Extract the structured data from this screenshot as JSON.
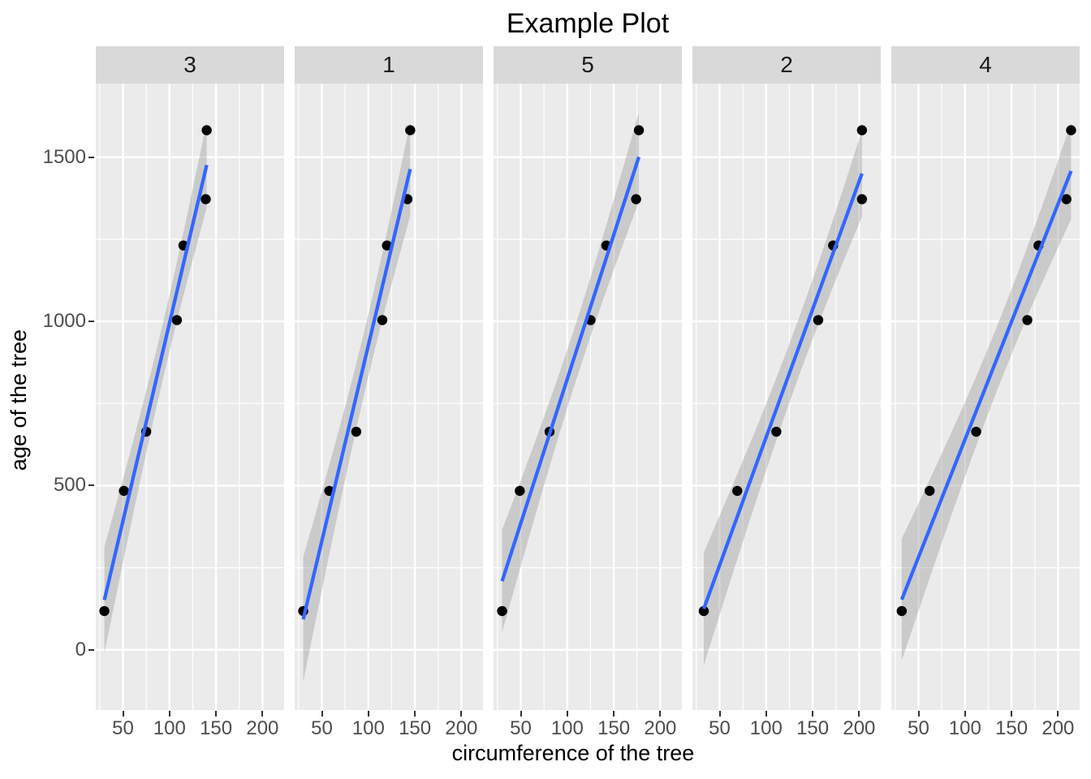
{
  "chart_data": {
    "type": "scatter",
    "title": "Example Plot",
    "xlabel": "circumference of the tree",
    "ylabel": "age of the tree",
    "facet_variable_order": [
      "3",
      "1",
      "5",
      "2",
      "4"
    ],
    "xlim": [
      20.8,
      223.2
    ],
    "ylim": [
      -183.3,
      1724.0
    ],
    "x_ticks": [
      50,
      100,
      150,
      200
    ],
    "y_ticks": [
      0,
      500,
      1000,
      1500
    ],
    "x_minor_breaks": [
      25,
      75,
      125,
      175
    ],
    "y_minor_breaks": [
      250,
      750,
      1250
    ],
    "grid": true,
    "legend": "none",
    "series": [
      {
        "facet": "3",
        "circumference": [
          30,
          51,
          75,
          108,
          115,
          139,
          140
        ],
        "age": [
          118,
          484,
          664,
          1004,
          1231,
          1372,
          1582
        ],
        "smooth": {
          "method": "lm",
          "intercept": -209.51,
          "slope": 12.0389,
          "t_se": 226.08,
          "x_mean": 94.0,
          "sxx": 11084.0,
          "n": 7,
          "x_min": 30,
          "x_max": 140
        }
      },
      {
        "facet": "1",
        "circumference": [
          30,
          58,
          87,
          115,
          120,
          142,
          145
        ],
        "age": [
          118,
          484,
          664,
          1004,
          1231,
          1372,
          1582
        ],
        "smooth": {
          "method": "lm",
          "intercept": -264.67,
          "slope": 11.9193,
          "t_se": 250.47,
          "x_mean": 99.5714,
          "sxx": 11245.7,
          "n": 7,
          "x_min": 30,
          "x_max": 145
        }
      },
      {
        "facet": "5",
        "circumference": [
          30,
          49,
          81,
          125,
          142,
          174,
          177
        ],
        "age": [
          118,
          484,
          664,
          1004,
          1231,
          1372,
          1582
        ],
        "smooth": {
          "method": "lm",
          "intercept": -54.54,
          "slope": 8.7871,
          "t_se": 230.21,
          "x_mean": 111.1429,
          "sxx": 20786.9,
          "n": 7,
          "x_min": 30,
          "x_max": 177
        }
      },
      {
        "facet": "2",
        "circumference": [
          33,
          69,
          111,
          156,
          172,
          203,
          203
        ],
        "age": [
          118,
          484,
          664,
          1004,
          1231,
          1372,
          1582
        ],
        "smooth": {
          "method": "lm",
          "intercept": -132.44,
          "slope": 7.7952,
          "t_se": 233.66,
          "x_mean": 135.2857,
          "sxx": 26393.4,
          "n": 7,
          "x_min": 33,
          "x_max": 203
        }
      },
      {
        "facet": "4",
        "circumference": [
          32,
          62,
          112,
          167,
          179,
          209,
          214
        ],
        "age": [
          118,
          484,
          664,
          1004,
          1231,
          1372,
          1582
        ],
        "smooth": {
          "method": "lm",
          "intercept": -76.51,
          "slope": 7.1699,
          "t_se": 258.92,
          "x_mean": 139.2857,
          "sxx": 31015.4,
          "n": 7,
          "x_min": 32,
          "x_max": 214
        }
      }
    ]
  },
  "colors": {
    "smooth_line": "#3366FF",
    "ribbon_fill": "rgba(153,153,153,0.4)",
    "point": "#000000",
    "panel_bg": "#EBEBEB",
    "strip_bg": "#D9D9D9",
    "strip_text": "#1A1A1A",
    "gridline": "#FFFFFF",
    "tick_label": "#4D4D4D",
    "tick_mark": "#333333"
  }
}
